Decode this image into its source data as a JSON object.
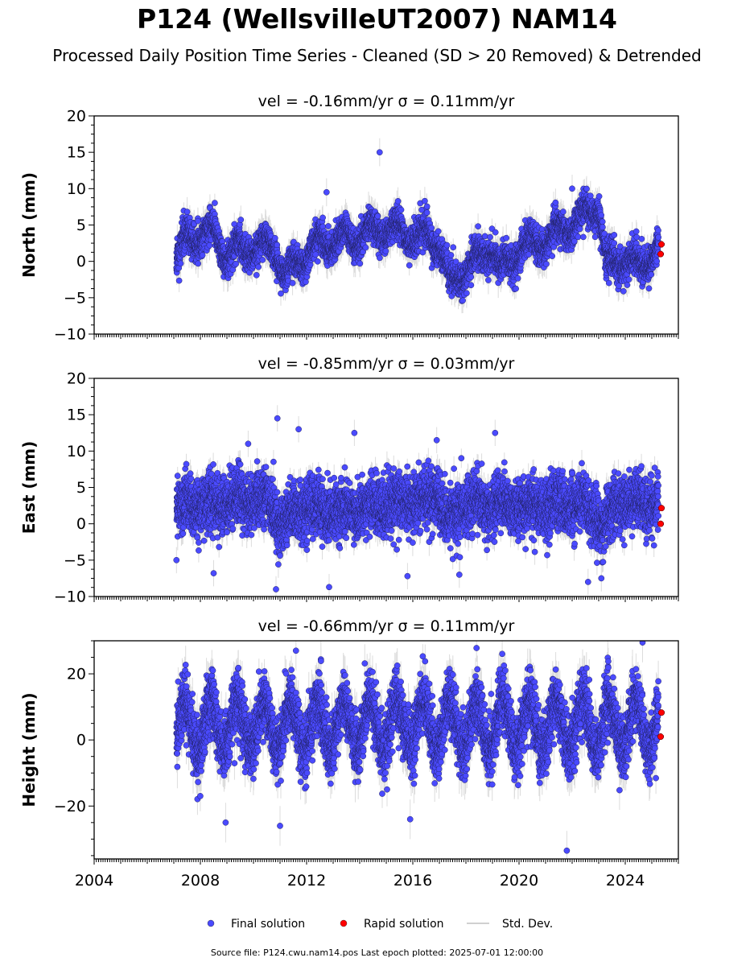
{
  "title": "P124 (WellsvilleUT2007) NAM14",
  "subtitle": "Processed Daily Position Time Series - Cleaned (SD > 20 Removed) & Detrended",
  "footer": "Source file: P124.cwu.nam14.pos  Last epoch plotted: 2025-07-01 12:00:00",
  "colors": {
    "final": "#4a4aff",
    "rapid": "#ff0000",
    "stddev": "#c0c0c0"
  },
  "chart_data": [
    {
      "type": "scatter",
      "component": "north",
      "title": "vel = -0.16mm/yr   σ = 0.11mm/yr",
      "ylabel": "North (mm)",
      "xlim": [
        2004.0,
        2026.0
      ],
      "ylim": [
        -10,
        20
      ],
      "yticks": [
        -10,
        -5,
        0,
        5,
        10,
        15,
        20
      ],
      "xticks": [
        2004,
        2008,
        2012,
        2016,
        2020,
        2024
      ],
      "x_ticklabels_shown": false,
      "data_start": 2007.1,
      "data_end": 2025.25,
      "rapid_start": 2025.25,
      "rapid_end": 2025.5,
      "trend_knots": [
        [
          2007.1,
          0.5
        ],
        [
          2007.5,
          3.0
        ],
        [
          2008.5,
          4.0
        ],
        [
          2009.0,
          1.0
        ],
        [
          2010.0,
          2.0
        ],
        [
          2010.8,
          2.0
        ],
        [
          2011.2,
          -2.0
        ],
        [
          2011.8,
          0.5
        ],
        [
          2012.5,
          2.5
        ],
        [
          2014.0,
          3.5
        ],
        [
          2015.0,
          4.5
        ],
        [
          2016.0,
          3.5
        ],
        [
          2017.0,
          3.0
        ],
        [
          2017.4,
          -3.5
        ],
        [
          2018.0,
          -1.0
        ],
        [
          2019.0,
          2.0
        ],
        [
          2019.3,
          -1.5
        ],
        [
          2020.0,
          1.5
        ],
        [
          2021.0,
          3.0
        ],
        [
          2022.0,
          5.0
        ],
        [
          2023.0,
          8.0
        ],
        [
          2023.3,
          -1.0
        ],
        [
          2024.0,
          0.5
        ],
        [
          2024.5,
          -1.0
        ],
        [
          2025.25,
          2.0
        ]
      ],
      "seasonal_amplitude": 1.3,
      "noise_sd": 1.1,
      "typical_error": 1.6,
      "outliers": [
        [
          2014.75,
          15.0
        ],
        [
          2012.75,
          9.5
        ],
        [
          2022.0,
          10.0
        ]
      ],
      "rapid_range": [
        1.0,
        3.5
      ],
      "seed": 11
    },
    {
      "type": "scatter",
      "component": "east",
      "title": "vel = -0.85mm/yr   σ = 0.03mm/yr",
      "ylabel": "East (mm)",
      "xlim": [
        2004.0,
        2026.0
      ],
      "ylim": [
        -10,
        20
      ],
      "yticks": [
        -10,
        -5,
        0,
        5,
        10,
        15,
        20
      ],
      "xticks": [
        2004,
        2008,
        2012,
        2016,
        2020,
        2024
      ],
      "x_ticklabels_shown": false,
      "data_start": 2007.1,
      "data_end": 2025.25,
      "rapid_start": 2025.25,
      "rapid_end": 2025.5,
      "trend_knots": [
        [
          2007.1,
          2.0
        ],
        [
          2010.5,
          3.5
        ],
        [
          2011.0,
          0.0
        ],
        [
          2012.0,
          2.5
        ],
        [
          2013.0,
          1.5
        ],
        [
          2016.5,
          3.5
        ],
        [
          2017.0,
          4.0
        ],
        [
          2017.2,
          0.0
        ],
        [
          2018.0,
          2.5
        ],
        [
          2022.5,
          2.5
        ],
        [
          2023.2,
          -0.5
        ],
        [
          2023.7,
          3.0
        ],
        [
          2025.25,
          2.5
        ]
      ],
      "seasonal_amplitude": 0.6,
      "noise_sd": 1.9,
      "typical_error": 1.5,
      "outliers": [
        [
          2010.9,
          14.5
        ],
        [
          2011.7,
          13.0
        ],
        [
          2013.8,
          12.5
        ],
        [
          2019.1,
          12.5
        ],
        [
          2016.9,
          11.5
        ],
        [
          2009.8,
          11.0
        ],
        [
          2007.1,
          -5.0
        ],
        [
          2008.5,
          -6.8
        ],
        [
          2010.85,
          -9.0
        ],
        [
          2012.85,
          -8.7
        ],
        [
          2022.6,
          -8.0
        ],
        [
          2023.1,
          -7.5
        ],
        [
          2017.75,
          -7.0
        ],
        [
          2015.8,
          -7.2
        ]
      ],
      "rapid_range": [
        0.0,
        4.0
      ],
      "seed": 23
    },
    {
      "type": "scatter",
      "component": "height",
      "title": "vel = -0.66mm/yr   σ = 0.11mm/yr",
      "ylabel": "Height (mm)",
      "xlim": [
        2004.0,
        2026.0
      ],
      "ylim": [
        -36,
        30
      ],
      "yticks": [
        -20,
        0,
        20
      ],
      "xticks": [
        2004,
        2008,
        2012,
        2016,
        2020,
        2024
      ],
      "x_ticklabels": [
        "2004",
        "2008",
        "2012",
        "2016",
        "2020",
        "2024"
      ],
      "x_ticklabels_shown": true,
      "data_start": 2007.1,
      "data_end": 2025.25,
      "rapid_start": 2025.25,
      "rapid_end": 2025.5,
      "trend_knots": [
        [
          2007.1,
          4.0
        ],
        [
          2016.0,
          4.5
        ],
        [
          2025.25,
          4.5
        ]
      ],
      "seasonal_amplitude": 7.5,
      "noise_sd": 4.5,
      "typical_error": 5.0,
      "outliers": [
        [
          2021.8,
          -33.5
        ],
        [
          2024.65,
          29.5
        ],
        [
          2008.95,
          -25.0
        ],
        [
          2011.0,
          -26.0
        ],
        [
          2015.9,
          -24.0
        ],
        [
          2011.6,
          27.0
        ]
      ],
      "rapid_range": [
        1.0,
        14.5
      ],
      "seed": 37
    }
  ],
  "legend": {
    "placement": "bottom-center",
    "items": [
      {
        "label": "Final solution",
        "kind": "final"
      },
      {
        "label": "Rapid solution",
        "kind": "rapid"
      },
      {
        "label": "Std. Dev.",
        "kind": "stddev"
      }
    ]
  }
}
